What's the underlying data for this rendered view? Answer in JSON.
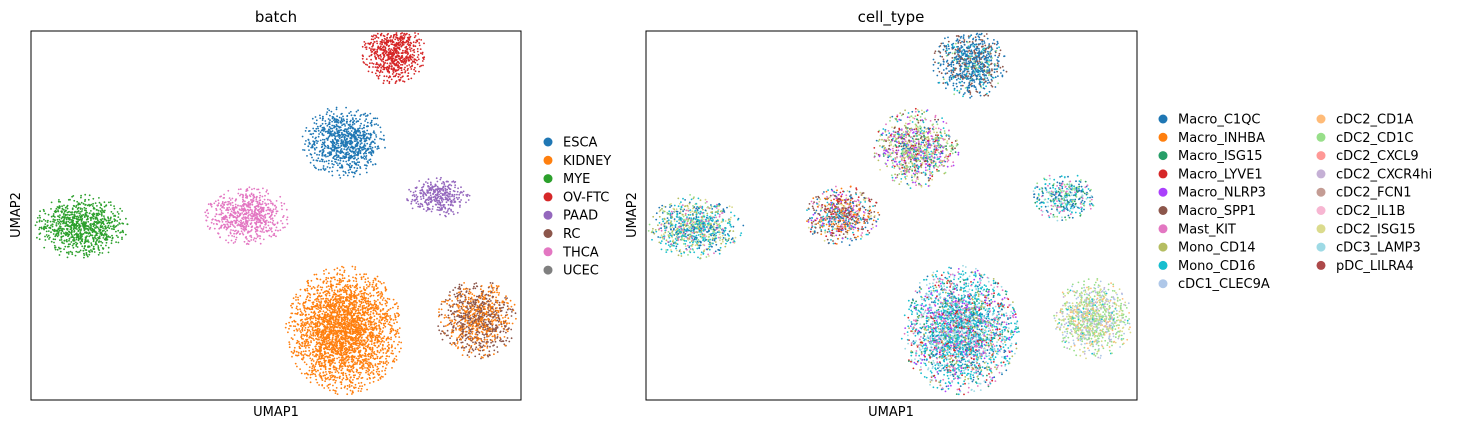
{
  "chart_data": [
    {
      "type": "scatter",
      "title": "batch",
      "xlabel": "UMAP1",
      "ylabel": "UMAP2",
      "xticks": "none",
      "yticks": "none",
      "legend_placement": "right",
      "legend": [
        {
          "name": "ESCA",
          "color": "#1f77b4"
        },
        {
          "name": "KIDNEY",
          "color": "#ff7f0e"
        },
        {
          "name": "MYE",
          "color": "#2ca02c"
        },
        {
          "name": "OV-FTC",
          "color": "#d62728"
        },
        {
          "name": "PAAD",
          "color": "#9467bd"
        },
        {
          "name": "RC",
          "color": "#8c564b"
        },
        {
          "name": "THCA",
          "color": "#e377c2"
        },
        {
          "name": "UCEC",
          "color": "#7f7f7f"
        }
      ],
      "clusters": [
        {
          "x": 0.74,
          "y": 0.94,
          "rx": 0.06,
          "ry": 0.08,
          "count": 700,
          "mix": [
            [
              3,
              1
            ]
          ]
        },
        {
          "x": 0.64,
          "y": 0.7,
          "rx": 0.08,
          "ry": 0.09,
          "count": 900,
          "mix": [
            [
              0,
              1
            ]
          ]
        },
        {
          "x": 0.83,
          "y": 0.55,
          "rx": 0.06,
          "ry": 0.05,
          "count": 350,
          "mix": [
            [
              4,
              1
            ]
          ]
        },
        {
          "x": 0.1,
          "y": 0.47,
          "rx": 0.09,
          "ry": 0.08,
          "count": 900,
          "mix": [
            [
              2,
              1
            ]
          ]
        },
        {
          "x": 0.44,
          "y": 0.5,
          "rx": 0.08,
          "ry": 0.075,
          "count": 700,
          "mix": [
            [
              6,
              1
            ]
          ]
        },
        {
          "x": 0.64,
          "y": 0.19,
          "rx": 0.11,
          "ry": 0.16,
          "count": 2800,
          "mix": [
            [
              1,
              1
            ]
          ]
        },
        {
          "x": 0.91,
          "y": 0.22,
          "rx": 0.075,
          "ry": 0.1,
          "count": 1000,
          "mix": [
            [
              5,
              0.55
            ],
            [
              1,
              0.45
            ]
          ]
        }
      ]
    },
    {
      "type": "scatter",
      "title": "cell_type",
      "xlabel": "UMAP1",
      "ylabel": "UMAP2",
      "xticks": "none",
      "yticks": "none",
      "legend_placement": "right",
      "legend": [
        {
          "name": "Macro_C1QC",
          "color": "#1f77b4"
        },
        {
          "name": "Macro_INHBA",
          "color": "#ff7f0e"
        },
        {
          "name": "Macro_ISG15",
          "color": "#279e68"
        },
        {
          "name": "Macro_LYVE1",
          "color": "#d62728"
        },
        {
          "name": "Macro_NLRP3",
          "color": "#aa40fc"
        },
        {
          "name": "Macro_SPP1",
          "color": "#8c564b"
        },
        {
          "name": "Mast_KIT",
          "color": "#e377c2"
        },
        {
          "name": "Mono_CD14",
          "color": "#b5bd61"
        },
        {
          "name": "Mono_CD16",
          "color": "#17becf"
        },
        {
          "name": "cDC1_CLEC9A",
          "color": "#aec7e8"
        },
        {
          "name": "cDC2_CD1A",
          "color": "#ffbb78"
        },
        {
          "name": "cDC2_CD1C",
          "color": "#98df8a"
        },
        {
          "name": "cDC2_CXCL9",
          "color": "#ff9896"
        },
        {
          "name": "cDC2_CXCR4hi",
          "color": "#c5b0d5"
        },
        {
          "name": "cDC2_FCN1",
          "color": "#c49c94"
        },
        {
          "name": "cDC2_IL1B",
          "color": "#f7b6d2"
        },
        {
          "name": "cDC2_ISG15",
          "color": "#dbdb8d"
        },
        {
          "name": "cDC3_LAMP3",
          "color": "#9edae5"
        },
        {
          "name": "pDC_LILRA4",
          "color": "#ad494a"
        }
      ],
      "clusters": [
        {
          "x": 0.66,
          "y": 0.91,
          "rx": 0.07,
          "ry": 0.09,
          "count": 800,
          "mix": [
            [
              0,
              0.6
            ],
            [
              5,
              0.25
            ],
            [
              8,
              0.1
            ],
            [
              11,
              0.05
            ]
          ]
        },
        {
          "x": 0.55,
          "y": 0.68,
          "rx": 0.08,
          "ry": 0.1,
          "count": 1000,
          "mix": [
            [
              4,
              0.12
            ],
            [
              6,
              0.14
            ],
            [
              7,
              0.14
            ],
            [
              8,
              0.12
            ],
            [
              11,
              0.1
            ],
            [
              16,
              0.12
            ],
            [
              5,
              0.08
            ],
            [
              3,
              0.06
            ],
            [
              0,
              0.06
            ],
            [
              2,
              0.06
            ]
          ]
        },
        {
          "x": 0.85,
          "y": 0.55,
          "rx": 0.06,
          "ry": 0.06,
          "count": 400,
          "mix": [
            [
              0,
              0.3
            ],
            [
              8,
              0.2
            ],
            [
              11,
              0.2
            ],
            [
              6,
              0.1
            ],
            [
              2,
              0.1
            ],
            [
              17,
              0.1
            ]
          ]
        },
        {
          "x": 0.1,
          "y": 0.47,
          "rx": 0.09,
          "ry": 0.08,
          "count": 900,
          "mix": [
            [
              8,
              0.3
            ],
            [
              0,
              0.2
            ],
            [
              7,
              0.15
            ],
            [
              16,
              0.15
            ],
            [
              11,
              0.1
            ],
            [
              6,
              0.1
            ]
          ]
        },
        {
          "x": 0.4,
          "y": 0.5,
          "rx": 0.07,
          "ry": 0.075,
          "count": 700,
          "mix": [
            [
              5,
              0.25
            ],
            [
              1,
              0.15
            ],
            [
              0,
              0.15
            ],
            [
              6,
              0.1
            ],
            [
              8,
              0.1
            ],
            [
              16,
              0.1
            ],
            [
              3,
              0.08
            ],
            [
              4,
              0.07
            ]
          ]
        },
        {
          "x": 0.64,
          "y": 0.19,
          "rx": 0.11,
          "ry": 0.16,
          "count": 2800,
          "mix": [
            [
              8,
              0.32
            ],
            [
              17,
              0.18
            ],
            [
              6,
              0.12
            ],
            [
              0,
              0.1
            ],
            [
              4,
              0.08
            ],
            [
              7,
              0.08
            ],
            [
              2,
              0.06
            ],
            [
              3,
              0.06
            ]
          ]
        },
        {
          "x": 0.91,
          "y": 0.22,
          "rx": 0.075,
          "ry": 0.1,
          "count": 1000,
          "mix": [
            [
              11,
              0.35
            ],
            [
              9,
              0.2
            ],
            [
              16,
              0.2
            ],
            [
              10,
              0.1
            ],
            [
              13,
              0.1
            ],
            [
              8,
              0.05
            ]
          ]
        }
      ]
    }
  ]
}
